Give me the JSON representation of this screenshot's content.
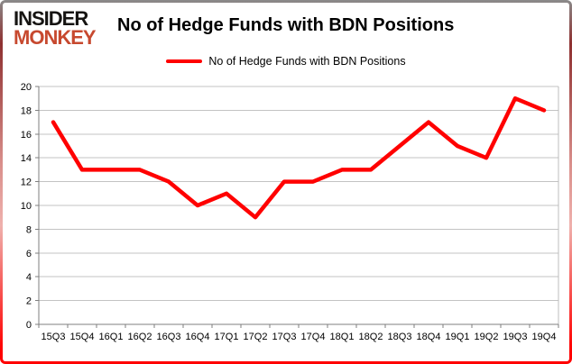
{
  "brand": {
    "line1": "INSIDER",
    "line2": "MONKEY",
    "color_line2": "#c7492f"
  },
  "header": {
    "title": "No of Hedge Funds with BDN Positions"
  },
  "legend": {
    "label": "No of Hedge Funds with BDN Positions",
    "swatch_color": "#ff0000"
  },
  "chart_data": {
    "type": "line",
    "title": "No of Hedge Funds with BDN Positions",
    "categories": [
      "15Q3",
      "15Q4",
      "16Q1",
      "16Q2",
      "16Q3",
      "16Q4",
      "17Q1",
      "17Q2",
      "17Q3",
      "17Q4",
      "18Q1",
      "18Q2",
      "18Q3",
      "18Q4",
      "19Q1",
      "19Q2",
      "19Q3",
      "19Q4"
    ],
    "series": [
      {
        "name": "No of Hedge Funds with BDN Positions",
        "color": "#ff0000",
        "values": [
          17,
          13,
          13,
          13,
          12,
          10,
          11,
          9,
          12,
          12,
          13,
          13,
          15,
          17,
          15,
          14,
          19,
          18
        ]
      }
    ],
    "xlabel": "",
    "ylabel": "",
    "ylim": [
      0,
      20
    ],
    "ytick_step": 2,
    "grid": true,
    "legend_position": "top-center"
  },
  "colors": {
    "gridline": "#c3c3c3",
    "axis": "#7f7f7f",
    "tick_text": "#000000",
    "plot_right_border": "#bcbcbc"
  }
}
